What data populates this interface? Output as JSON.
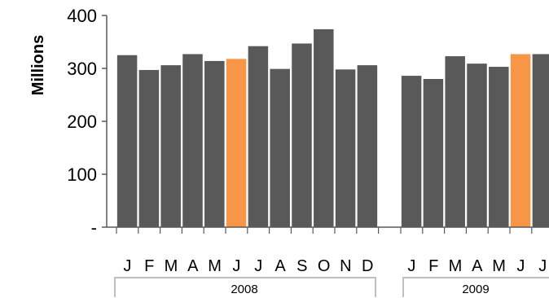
{
  "chart_data": {
    "type": "bar",
    "ylabel": "Millions",
    "ylim": [
      0,
      400
    ],
    "yticks": [
      {
        "value": 0,
        "label": "-"
      },
      {
        "value": 100,
        "label": "100"
      },
      {
        "value": 200,
        "label": "200"
      },
      {
        "value": 300,
        "label": "300"
      },
      {
        "value": 400,
        "label": "400"
      }
    ],
    "groups": [
      {
        "year": "2008",
        "categories": [
          "J",
          "F",
          "M",
          "A",
          "M",
          "J",
          "J",
          "A",
          "S",
          "O",
          "N",
          "D"
        ],
        "values": [
          325,
          297,
          306,
          327,
          314,
          318,
          342,
          299,
          347,
          374,
          298,
          306
        ]
      },
      {
        "year": "2009",
        "categories": [
          "J",
          "F",
          "M",
          "A",
          "M",
          "J",
          "J"
        ],
        "values": [
          286,
          280,
          323,
          309,
          303,
          327,
          327
        ]
      }
    ],
    "highlight": [
      {
        "group": 0,
        "index": 5
      },
      {
        "group": 1,
        "index": 5
      }
    ],
    "colors": {
      "bar": "#595959",
      "highlight": "#F79646",
      "axis": "#595959",
      "bracket": "#BFBFBF"
    },
    "grid": false,
    "legend": "none"
  }
}
